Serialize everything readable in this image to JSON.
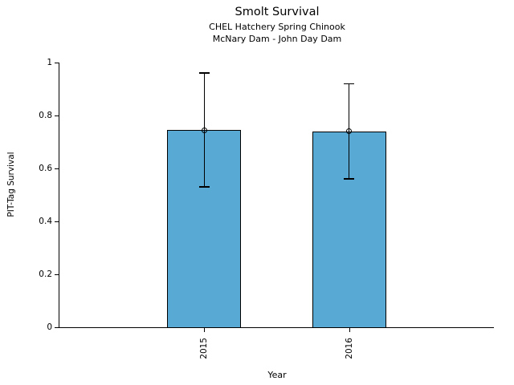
{
  "chart_data": {
    "type": "bar",
    "title": "Smolt Survival",
    "subtitle1": "CHEL Hatchery Spring Chinook",
    "subtitle2": "McNary Dam - John Day Dam",
    "xlabel": "Year",
    "ylabel": "PIT-Tag Survival",
    "categories": [
      "2015",
      "2016"
    ],
    "series": [
      {
        "name": "PIT-Tag Survival",
        "values": [
          0.745,
          0.74
        ]
      }
    ],
    "error_bars": {
      "low": [
        0.53,
        0.56
      ],
      "high": [
        0.96,
        0.92
      ]
    },
    "ylim": [
      0,
      1
    ],
    "yticks": [
      0,
      0.2,
      0.4,
      0.6,
      0.8,
      1
    ],
    "ytick_labels": [
      "0",
      "0.2",
      "0.4",
      "0.6",
      "0.8",
      "1"
    ],
    "xtick_rotation_deg": 90,
    "grid": false,
    "legend": "none",
    "background_color": "#ffffff",
    "bar_color": "#58A9D4",
    "bar_edge_color": "#000000",
    "error_bar_color": "#000000",
    "text_color": "#000000",
    "marker": "open-circle"
  }
}
